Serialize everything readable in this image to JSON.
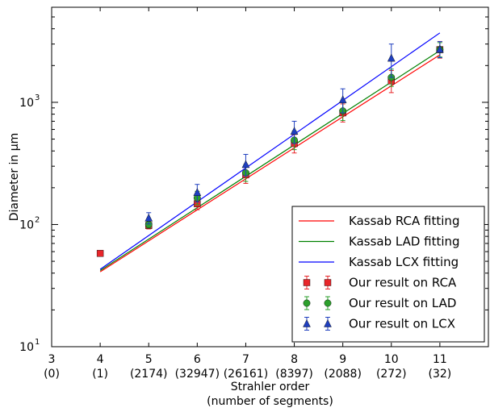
{
  "chart_data": {
    "type": "line",
    "title": "",
    "xlabel": "Strahler order",
    "xlabel_sub": "(number of segments)",
    "ylabel": "Diameter in μm",
    "y_scale": "log",
    "xlim": [
      3,
      12
    ],
    "ylim": [
      10,
      6000
    ],
    "grid": false,
    "legend_position": "lower-right",
    "x_ticks": [
      {
        "order": 3,
        "label": "3",
        "segments": "(0)"
      },
      {
        "order": 4,
        "label": "4",
        "segments": "(1)"
      },
      {
        "order": 5,
        "label": "5",
        "segments": "(2174)"
      },
      {
        "order": 6,
        "label": "6",
        "segments": "(32947)"
      },
      {
        "order": 7,
        "label": "7",
        "segments": "(26161)"
      },
      {
        "order": 8,
        "label": "8",
        "segments": "(8397)"
      },
      {
        "order": 9,
        "label": "9",
        "segments": "(2088)"
      },
      {
        "order": 10,
        "label": "10",
        "segments": "(272)"
      },
      {
        "order": 11,
        "label": "11",
        "segments": "(32)"
      }
    ],
    "y_ticks": [
      {
        "value": 10,
        "base": "10",
        "exp": "1"
      },
      {
        "value": 100,
        "base": "10",
        "exp": "2"
      },
      {
        "value": 1000,
        "base": "10",
        "exp": "3"
      }
    ],
    "lines": [
      {
        "name": "Kassab RCA fitting",
        "color": "#ff0000",
        "x": [
          4,
          11
        ],
        "y": [
          41,
          2450
        ]
      },
      {
        "name": "Kassab LAD fitting",
        "color": "#008000",
        "x": [
          4,
          11
        ],
        "y": [
          42,
          2650
        ]
      },
      {
        "name": "Kassab LCX fitting",
        "color": "#0000ff",
        "x": [
          4,
          11
        ],
        "y": [
          43,
          3700
        ]
      }
    ],
    "series": [
      {
        "name": "Our result on RCA",
        "color": "#e8262a",
        "marker": "square",
        "x": [
          4,
          5,
          6,
          7,
          8,
          9,
          10,
          11
        ],
        "y": [
          58,
          98,
          148,
          255,
          460,
          820,
          1500,
          2700
        ],
        "err_low": [
          0,
          6,
          16,
          38,
          75,
          130,
          300,
          400
        ],
        "err_high": [
          0,
          7,
          18,
          45,
          85,
          150,
          320,
          450
        ]
      },
      {
        "name": "Our result on LAD",
        "color": "#2ca02c",
        "marker": "circle",
        "x": [
          5,
          6,
          7,
          8,
          9,
          10,
          11
        ],
        "y": [
          100,
          165,
          265,
          490,
          850,
          1600,
          2700
        ],
        "err_low": [
          6,
          20,
          40,
          80,
          140,
          250,
          350
        ],
        "err_high": [
          7,
          22,
          45,
          90,
          150,
          270,
          380
        ]
      },
      {
        "name": "Our result on LCX",
        "color": "#1f3fbf",
        "marker": "triangle",
        "x": [
          5,
          6,
          7,
          8,
          9,
          10,
          11
        ],
        "y": [
          113,
          183,
          310,
          580,
          1050,
          2300,
          2720
        ],
        "err_low": [
          12,
          30,
          60,
          120,
          230,
          700,
          400
        ],
        "err_high": [
          12,
          30,
          65,
          120,
          240,
          700,
          420
        ]
      }
    ]
  }
}
